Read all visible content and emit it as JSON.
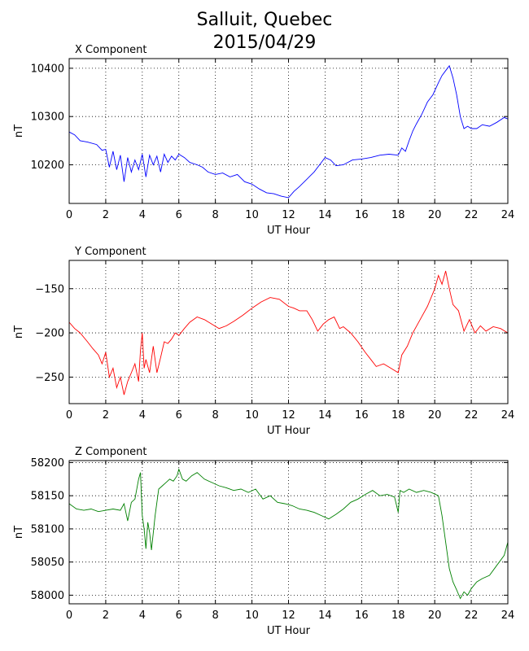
{
  "figure": {
    "title": "Salluit, Quebec",
    "subtitle": "2015/04/29"
  },
  "chart_data": [
    {
      "type": "line",
      "panel_title": "X Component",
      "xlabel": "UT Hour",
      "ylabel": "nT",
      "xlim": [
        0,
        24
      ],
      "ylim": [
        10120,
        10420
      ],
      "xticks": [
        0,
        2,
        4,
        6,
        8,
        10,
        12,
        14,
        16,
        18,
        20,
        22,
        24
      ],
      "yticks": [
        10200,
        10300,
        10400
      ],
      "grid": true,
      "color": "#0000ff",
      "series": [
        {
          "x": [
            0,
            0.3,
            0.6,
            1,
            1.5,
            1.8,
            2,
            2.2,
            2.4,
            2.6,
            2.8,
            3,
            3.2,
            3.4,
            3.6,
            3.8,
            4,
            4.2,
            4.4,
            4.6,
            4.8,
            5,
            5.2,
            5.4,
            5.6,
            5.8,
            6,
            6.3,
            6.6,
            7,
            7.3,
            7.6,
            8,
            8.4,
            8.8,
            9.2,
            9.6,
            10,
            10.4,
            10.8,
            11.2,
            11.6,
            12,
            12.3,
            12.6,
            13,
            13.4,
            13.8,
            14,
            14.3,
            14.6,
            15,
            15.5,
            16,
            16.5,
            17,
            17.5,
            18,
            18.2,
            18.4,
            18.6,
            18.8,
            19,
            19.3,
            19.6,
            19.9,
            20.2,
            20.4,
            20.6,
            20.8,
            21,
            21.2,
            21.4,
            21.6,
            21.8,
            22,
            22.3,
            22.6,
            23,
            23.4,
            23.8,
            24
          ],
          "y": [
            10268,
            10262,
            10250,
            10247,
            10242,
            10230,
            10232,
            10195,
            10228,
            10190,
            10220,
            10165,
            10215,
            10185,
            10210,
            10190,
            10222,
            10175,
            10220,
            10200,
            10218,
            10185,
            10222,
            10205,
            10218,
            10210,
            10222,
            10215,
            10205,
            10200,
            10195,
            10185,
            10180,
            10183,
            10175,
            10180,
            10165,
            10160,
            10150,
            10142,
            10140,
            10135,
            10132,
            10145,
            10155,
            10170,
            10185,
            10205,
            10215,
            10210,
            10198,
            10200,
            10210,
            10212,
            10215,
            10220,
            10222,
            10220,
            10235,
            10228,
            10250,
            10270,
            10285,
            10305,
            10330,
            10345,
            10370,
            10385,
            10395,
            10405,
            10380,
            10345,
            10300,
            10275,
            10280,
            10275,
            10275,
            10283,
            10280,
            10288,
            10298,
            10295
          ]
        }
      ]
    },
    {
      "type": "line",
      "panel_title": "Y Component",
      "xlabel": "UT Hour",
      "ylabel": "nT",
      "xlim": [
        0,
        24
      ],
      "ylim": [
        -280,
        -118
      ],
      "xticks": [
        0,
        2,
        4,
        6,
        8,
        10,
        12,
        14,
        16,
        18,
        20,
        22,
        24
      ],
      "yticks": [
        -150,
        -200,
        -250
      ],
      "grid": true,
      "color": "#ff0000",
      "series": [
        {
          "x": [
            0,
            0.3,
            0.6,
            1,
            1.3,
            1.6,
            1.8,
            2,
            2.2,
            2.4,
            2.6,
            2.8,
            3,
            3.2,
            3.4,
            3.6,
            3.8,
            3.9,
            4,
            4.1,
            4.2,
            4.4,
            4.6,
            4.8,
            5,
            5.2,
            5.4,
            5.6,
            5.8,
            6,
            6.3,
            6.6,
            7,
            7.4,
            7.8,
            8.2,
            8.6,
            9,
            9.5,
            10,
            10.5,
            11,
            11.5,
            12,
            12.3,
            12.6,
            13,
            13.3,
            13.6,
            13.9,
            14.2,
            14.5,
            14.8,
            15,
            15.4,
            15.8,
            16.2,
            16.5,
            16.8,
            17.2,
            17.6,
            18,
            18.2,
            18.5,
            18.8,
            19.2,
            19.6,
            20,
            20.2,
            20.4,
            20.6,
            20.8,
            21,
            21.3,
            21.6,
            21.9,
            22.2,
            22.5,
            22.8,
            23.2,
            23.6,
            24
          ],
          "y": [
            -188,
            -195,
            -200,
            -210,
            -218,
            -225,
            -235,
            -222,
            -250,
            -240,
            -262,
            -250,
            -270,
            -255,
            -245,
            -235,
            -255,
            -220,
            -200,
            -240,
            -230,
            -245,
            -215,
            -245,
            -228,
            -210,
            -212,
            -207,
            -200,
            -203,
            -195,
            -188,
            -182,
            -185,
            -190,
            -195,
            -192,
            -187,
            -180,
            -172,
            -165,
            -160,
            -162,
            -170,
            -172,
            -175,
            -175,
            -185,
            -198,
            -190,
            -185,
            -182,
            -195,
            -193,
            -200,
            -210,
            -222,
            -230,
            -238,
            -235,
            -240,
            -245,
            -225,
            -215,
            -200,
            -185,
            -170,
            -150,
            -135,
            -145,
            -130,
            -150,
            -168,
            -175,
            -198,
            -185,
            -200,
            -192,
            -198,
            -193,
            -195,
            -200
          ]
        }
      ]
    },
    {
      "type": "line",
      "panel_title": "Z Component",
      "xlabel": "UT Hour",
      "ylabel": "nT",
      "xlim": [
        0,
        24
      ],
      "ylim": [
        57987,
        58203
      ],
      "xticks": [
        0,
        2,
        4,
        6,
        8,
        10,
        12,
        14,
        16,
        18,
        20,
        22,
        24
      ],
      "yticks": [
        58000,
        58050,
        58100,
        58150,
        58200
      ],
      "grid": true,
      "color": "#008000",
      "series": [
        {
          "x": [
            0,
            0.4,
            0.8,
            1.2,
            1.6,
            2,
            2.4,
            2.8,
            3,
            3.2,
            3.4,
            3.6,
            3.8,
            3.9,
            4,
            4.1,
            4.2,
            4.3,
            4.4,
            4.5,
            4.7,
            4.9,
            5.1,
            5.3,
            5.5,
            5.7,
            5.9,
            6,
            6.2,
            6.4,
            6.7,
            7,
            7.4,
            7.8,
            8.2,
            8.6,
            9,
            9.4,
            9.8,
            10.2,
            10.6,
            11,
            11.4,
            11.8,
            12.2,
            12.6,
            13,
            13.4,
            13.8,
            14.2,
            14.6,
            15,
            15.4,
            15.8,
            16.2,
            16.6,
            17,
            17.4,
            17.8,
            18,
            18.1,
            18.3,
            18.6,
            19,
            19.4,
            19.8,
            20.2,
            20.4,
            20.6,
            20.8,
            21,
            21.2,
            21.4,
            21.6,
            21.8,
            22,
            22.3,
            22.6,
            23,
            23.4,
            23.8,
            24
          ],
          "y": [
            58138,
            58130,
            58128,
            58130,
            58126,
            58128,
            58130,
            58128,
            58138,
            58112,
            58140,
            58145,
            58175,
            58185,
            58120,
            58100,
            58070,
            58110,
            58095,
            58068,
            58120,
            58160,
            58165,
            58170,
            58175,
            58172,
            58180,
            58190,
            58175,
            58172,
            58180,
            58185,
            58175,
            58170,
            58165,
            58162,
            58158,
            58160,
            58155,
            58160,
            58145,
            58150,
            58140,
            58138,
            58135,
            58130,
            58128,
            58125,
            58120,
            58115,
            58122,
            58130,
            58140,
            58145,
            58152,
            58158,
            58150,
            58152,
            58148,
            58125,
            58158,
            58155,
            58160,
            58155,
            58158,
            58155,
            58150,
            58120,
            58080,
            58040,
            58020,
            58008,
            57995,
            58005,
            58000,
            58010,
            58020,
            58025,
            58030,
            58045,
            58060,
            58080
          ]
        }
      ]
    }
  ]
}
